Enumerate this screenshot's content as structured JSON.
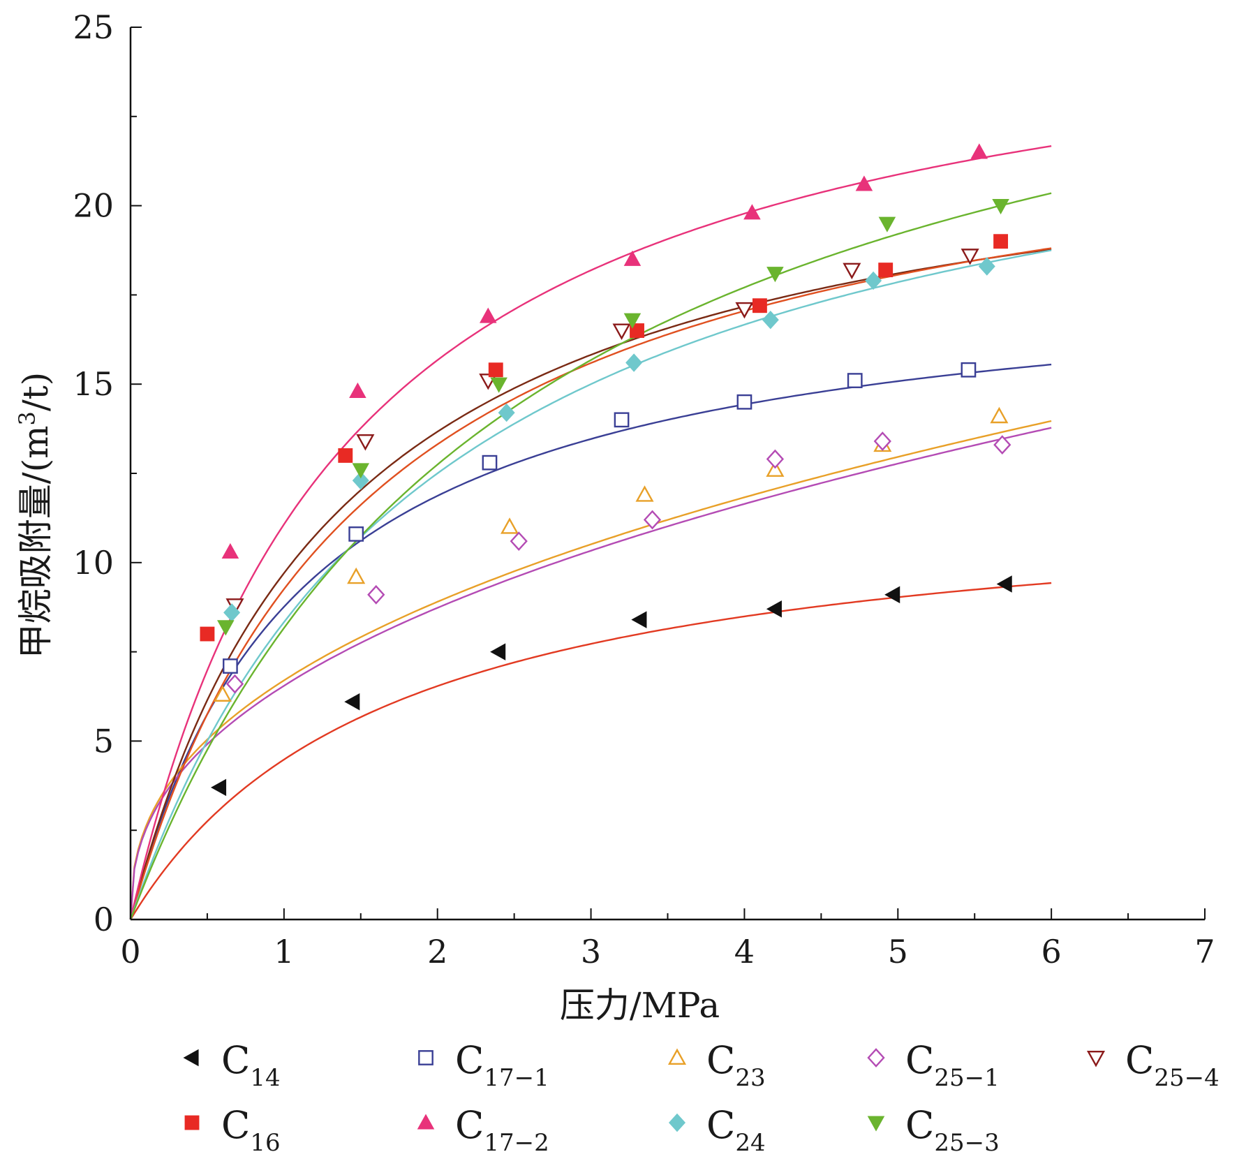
{
  "chart_data": {
    "type": "scatter",
    "xlabel": "压力/MPa",
    "ylabel_main": "甲烷吸附量/(m",
    "ylabel_sup": "3",
    "ylabel_tail": "/t)",
    "xlim": [
      0,
      7
    ],
    "ylim": [
      0,
      25
    ],
    "xticks": [
      0,
      1,
      2,
      3,
      4,
      5,
      6,
      7
    ],
    "yticks": [
      0,
      5,
      10,
      15,
      20,
      25
    ],
    "grid": false,
    "legend_position": "bottom",
    "series": [
      {
        "name": "C",
        "sub": "14",
        "marker": "triangle-left",
        "filled": true,
        "color": "#111111",
        "fit_color": "#e23a22",
        "x": [
          0.58,
          1.45,
          2.4,
          3.32,
          4.2,
          4.97,
          5.7
        ],
        "y": [
          3.7,
          6.1,
          7.5,
          8.4,
          8.7,
          9.1,
          9.4
        ],
        "fit": {
          "vl": 12.1,
          "pl": 1.7
        }
      },
      {
        "name": "C",
        "sub": "17−1",
        "marker": "square",
        "filled": false,
        "color": "#3a3f95",
        "fit_color": "#3a3f95",
        "x": [
          0.65,
          1.47,
          2.34,
          3.2,
          4.0,
          4.72,
          5.46
        ],
        "y": [
          7.1,
          10.8,
          12.8,
          14.0,
          14.5,
          15.1,
          15.4
        ],
        "fit": {
          "vl": 18.4,
          "pl": 1.1
        }
      },
      {
        "name": "C",
        "sub": "23",
        "marker": "triangle-up",
        "filled": false,
        "color": "#e8a028",
        "fit_color": "#e8a028",
        "x": [
          0.6,
          1.47,
          2.47,
          3.35,
          4.2,
          4.9,
          5.66
        ],
        "y": [
          6.3,
          9.6,
          11.0,
          11.9,
          12.6,
          13.3,
          14.1
        ],
        "fit": {
          "a": 6.7,
          "b": 0.41
        }
      },
      {
        "name": "C",
        "sub": "25−1",
        "marker": "diamond",
        "filled": false,
        "color": "#b44bb4",
        "fit_color": "#b44bb4",
        "x": [
          0.68,
          1.6,
          2.53,
          3.4,
          4.2,
          4.9,
          5.68
        ],
        "y": [
          6.6,
          9.1,
          10.6,
          11.2,
          12.9,
          13.4,
          13.3
        ],
        "fit": {
          "a": 6.55,
          "b": 0.415
        }
      },
      {
        "name": "C",
        "sub": "25−4",
        "marker": "triangle-down",
        "filled": false,
        "color": "#8b1a1a",
        "fit_color": "#7a2a14",
        "x": [
          0.68,
          1.53,
          2.33,
          3.2,
          4.0,
          4.7,
          5.47
        ],
        "y": [
          8.8,
          13.4,
          15.1,
          16.5,
          17.1,
          18.2,
          18.6
        ],
        "fit": {
          "vl": 23.1,
          "pl": 1.38
        }
      },
      {
        "name": "C",
        "sub": "16",
        "marker": "square",
        "filled": true,
        "color": "#e82a24",
        "fit_color": "#e05020",
        "x": [
          0.5,
          1.4,
          2.38,
          3.3,
          4.1,
          4.92,
          5.67
        ],
        "y": [
          8.0,
          13.0,
          15.4,
          16.5,
          17.2,
          18.2,
          19.0
        ],
        "fit": {
          "vl": 23.7,
          "pl": 1.56
        }
      },
      {
        "name": "C",
        "sub": "17−2",
        "marker": "triangle-up",
        "filled": true,
        "color": "#e8327a",
        "fit_color": "#e8327a",
        "x": [
          0.65,
          1.48,
          2.33,
          3.27,
          4.05,
          4.78,
          5.53
        ],
        "y": [
          10.3,
          14.8,
          16.9,
          18.5,
          19.8,
          20.6,
          21.5
        ],
        "fit": {
          "vl": 26.8,
          "pl": 1.42
        }
      },
      {
        "name": "C",
        "sub": "24",
        "marker": "diamond",
        "filled": true,
        "color": "#6fc8cc",
        "fit_color": "#6fc8cc",
        "x": [
          0.66,
          1.5,
          2.45,
          3.28,
          4.17,
          4.84,
          5.58
        ],
        "y": [
          8.6,
          12.3,
          14.2,
          15.6,
          16.8,
          17.9,
          18.3
        ],
        "fit": {
          "vl": 25.0,
          "pl": 2.0
        }
      },
      {
        "name": "C",
        "sub": "25−3",
        "marker": "triangle-down",
        "filled": true,
        "color": "#6ab42e",
        "fit_color": "#6ab42e",
        "x": [
          0.62,
          1.5,
          2.4,
          3.27,
          4.2,
          4.93,
          5.67
        ],
        "y": [
          8.2,
          12.6,
          15.0,
          16.8,
          18.1,
          19.5,
          20.0
        ],
        "fit": {
          "vl": 29.0,
          "pl": 2.55
        }
      }
    ]
  }
}
